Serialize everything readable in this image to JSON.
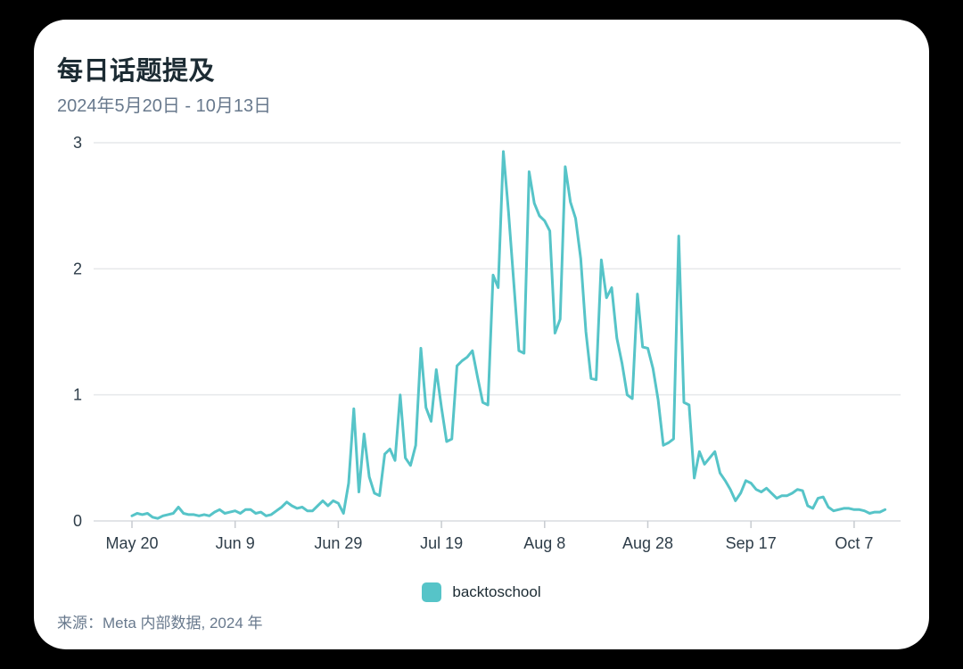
{
  "card": {
    "title": "每日话题提及",
    "subtitle": "2024年5月20日 - 10月13日",
    "source": "来源：Meta 内部数据, 2024 年"
  },
  "legend": {
    "label": "backtoschool",
    "swatch_color": "#56c4c8"
  },
  "colors": {
    "page_background": "#000000",
    "card_background": "#ffffff",
    "title_text": "#1c2b33",
    "subtitle_text": "#68798d",
    "axis_label_text": "#2e3d49",
    "gridline": "#e6e8ea",
    "baseline": "#d9dcdf",
    "tick_mark": "#c7cbd0",
    "series_line": "#56c4c8"
  },
  "chart_data": {
    "type": "line",
    "title": "每日话题提及",
    "subtitle_range": "2024年5月20日 - 10月13日",
    "x_start_date": "2024-05-20",
    "x_end_date": "2024-10-13",
    "total_days": 146,
    "x_tick_labels": [
      "May 20",
      "Jun 9",
      "Jun 29",
      "Jul 19",
      "Aug 8",
      "Aug 28",
      "Sep 17",
      "Oct 7"
    ],
    "x_tick_day_offsets": [
      0,
      20,
      40,
      60,
      80,
      100,
      120,
      140
    ],
    "y_ticks": [
      0,
      1,
      2,
      3
    ],
    "ylim": [
      0,
      3
    ],
    "grid": true,
    "legend_position": "bottom-center",
    "series": [
      {
        "name": "backtoschool",
        "color": "#56c4c8",
        "values": [
          0.04,
          0.06,
          0.05,
          0.06,
          0.03,
          0.02,
          0.04,
          0.05,
          0.06,
          0.11,
          0.06,
          0.05,
          0.05,
          0.04,
          0.05,
          0.04,
          0.07,
          0.09,
          0.06,
          0.07,
          0.08,
          0.06,
          0.09,
          0.09,
          0.06,
          0.07,
          0.04,
          0.05,
          0.08,
          0.11,
          0.15,
          0.12,
          0.1,
          0.11,
          0.08,
          0.08,
          0.12,
          0.16,
          0.12,
          0.16,
          0.14,
          0.06,
          0.3,
          0.89,
          0.23,
          0.69,
          0.35,
          0.22,
          0.2,
          0.53,
          0.57,
          0.48,
          1.0,
          0.5,
          0.44,
          0.6,
          1.37,
          0.9,
          0.79,
          1.2,
          0.9,
          0.63,
          0.65,
          1.23,
          1.27,
          1.3,
          1.35,
          1.14,
          0.94,
          0.92,
          1.95,
          1.85,
          2.93,
          2.45,
          1.9,
          1.35,
          1.33,
          2.77,
          2.52,
          2.42,
          2.38,
          2.3,
          1.49,
          1.6,
          2.81,
          2.53,
          2.4,
          2.08,
          1.5,
          1.13,
          1.12,
          2.07,
          1.77,
          1.85,
          1.45,
          1.25,
          1.0,
          0.97,
          1.8,
          1.38,
          1.37,
          1.21,
          0.96,
          0.6,
          0.62,
          0.65,
          2.26,
          0.94,
          0.92,
          0.34,
          0.55,
          0.45,
          0.5,
          0.55,
          0.38,
          0.32,
          0.25,
          0.16,
          0.22,
          0.32,
          0.3,
          0.25,
          0.23,
          0.26,
          0.22,
          0.18,
          0.2,
          0.2,
          0.22,
          0.25,
          0.24,
          0.12,
          0.1,
          0.18,
          0.19,
          0.11,
          0.08,
          0.09,
          0.1,
          0.1,
          0.09,
          0.09,
          0.08,
          0.06,
          0.07,
          0.07,
          0.09
        ]
      }
    ]
  }
}
